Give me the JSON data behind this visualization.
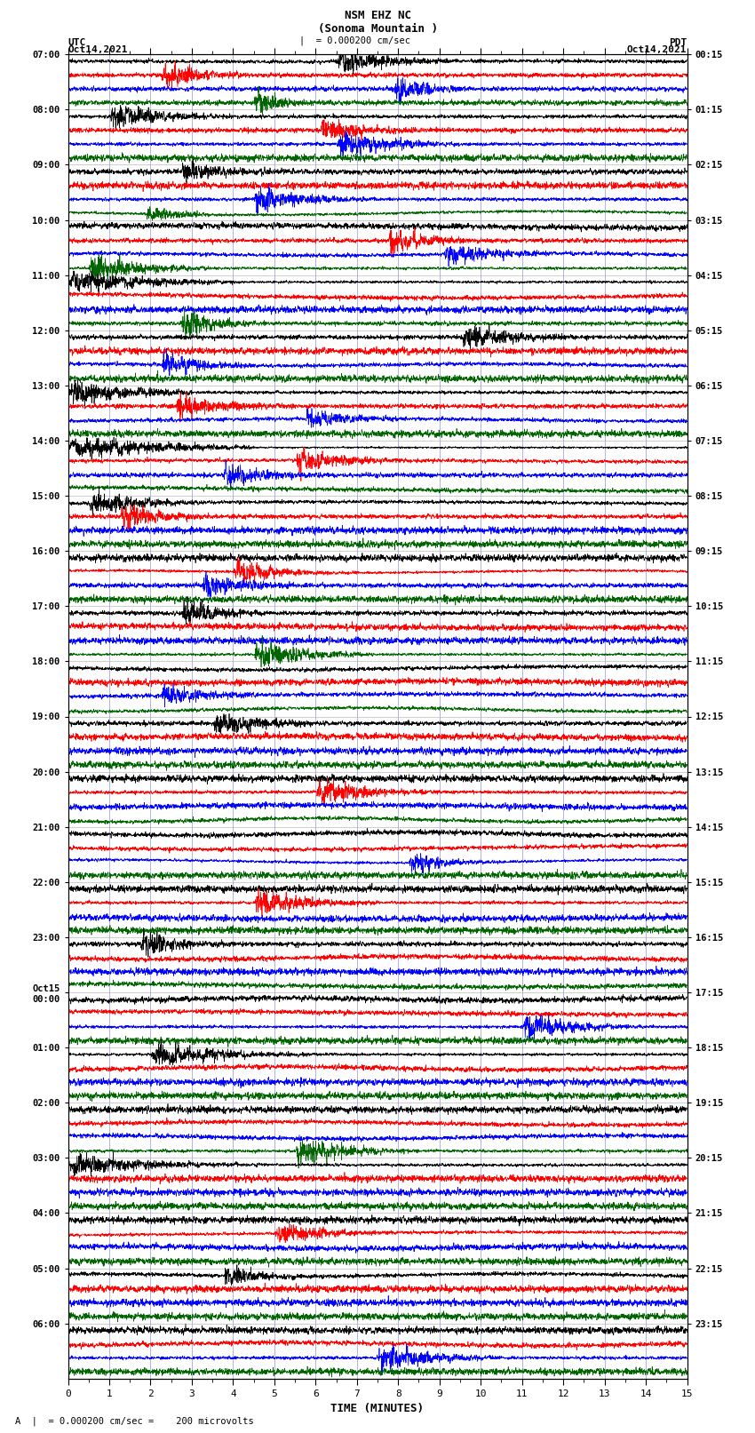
{
  "title_line1": "NSM EHZ NC",
  "title_line2": "(Sonoma Mountain )",
  "scale_label": "|  = 0.000200 cm/sec",
  "footer_label": "A  |  = 0.000200 cm/sec =    200 microvolts",
  "xlabel": "TIME (MINUTES)",
  "utc_label": "UTC",
  "pdt_label": "PDT",
  "date_left": "Oct14,2021",
  "date_right": "Oct14,2021",
  "background_color": "#ffffff",
  "trace_colors": [
    "#000000",
    "#ff0000",
    "#0000ff",
    "#006400"
  ],
  "num_rows": 24,
  "traces_per_row": 4,
  "xlim": [
    0,
    15
  ],
  "xticks": [
    0,
    1,
    2,
    3,
    4,
    5,
    6,
    7,
    8,
    9,
    10,
    11,
    12,
    13,
    14,
    15
  ],
  "left_times": [
    "07:00",
    "08:00",
    "09:00",
    "10:00",
    "11:00",
    "12:00",
    "13:00",
    "14:00",
    "15:00",
    "16:00",
    "17:00",
    "18:00",
    "19:00",
    "20:00",
    "21:00",
    "22:00",
    "23:00",
    "Oct15\n00:00",
    "01:00",
    "02:00",
    "03:00",
    "04:00",
    "05:00",
    "06:00"
  ],
  "right_times": [
    "00:15",
    "01:15",
    "02:15",
    "03:15",
    "04:15",
    "05:15",
    "06:15",
    "07:15",
    "08:15",
    "09:15",
    "10:15",
    "11:15",
    "12:15",
    "13:15",
    "14:15",
    "15:15",
    "16:15",
    "17:15",
    "18:15",
    "19:15",
    "20:15",
    "21:15",
    "22:15",
    "23:15"
  ],
  "fig_width": 8.5,
  "fig_height": 16.13,
  "dpi": 100
}
